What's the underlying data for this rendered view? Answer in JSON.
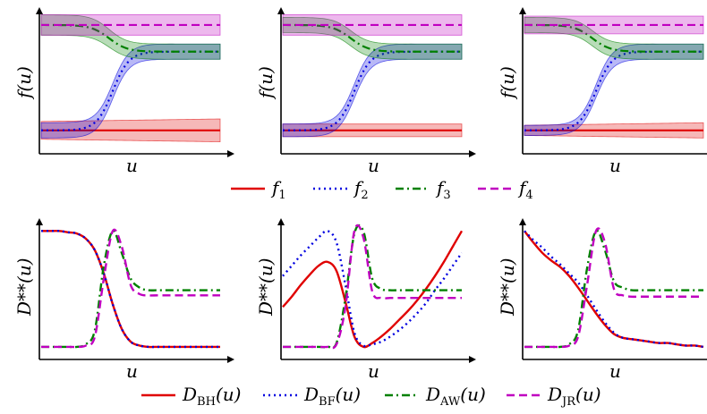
{
  "chart_data": {
    "type": "line",
    "description_rows": [
      "f(u) panels",
      "D(u) panels"
    ],
    "f_panels": [
      {
        "xlabel": "u",
        "ylabel": "f(u)",
        "xlim": [
          0,
          1
        ],
        "ylim": [
          0,
          1
        ],
        "series": [
          {
            "name": "f1",
            "color": "#e00000",
            "style": "solid",
            "center": [
              0.1,
              0.1
            ],
            "band": [
              0.07,
              0.09
            ]
          },
          {
            "name": "f2",
            "color": "#0000e0",
            "style": "dotted",
            "center": [
              0.1,
              0.72
            ],
            "band": [
              0.06,
              0.06
            ],
            "mid": 0.4,
            "steep": 22
          },
          {
            "name": "f3",
            "color": "#008000",
            "style": "dashdot",
            "center": [
              0.93,
              0.72
            ],
            "band": [
              0.08,
              0.06
            ],
            "mid": 0.38,
            "steep": 20
          },
          {
            "name": "f4",
            "color": "#c000c0",
            "style": "dashed",
            "center": [
              0.93,
              0.93
            ],
            "band": [
              0.08,
              0.08
            ]
          }
        ]
      },
      {
        "xlabel": "u",
        "ylabel": "f(u)",
        "xlim": [
          0,
          1
        ],
        "ylim": [
          0,
          1
        ],
        "series": [
          {
            "name": "f1",
            "color": "#e00000",
            "style": "solid",
            "center": [
              0.1,
              0.1
            ],
            "band": [
              0.05,
              0.05
            ]
          },
          {
            "name": "f2",
            "color": "#0000e0",
            "style": "dotted",
            "center": [
              0.1,
              0.72
            ],
            "band": [
              0.05,
              0.06
            ],
            "mid": 0.4,
            "steep": 22
          },
          {
            "name": "f3",
            "color": "#008000",
            "style": "dashdot",
            "center": [
              0.93,
              0.72
            ],
            "band": [
              0.06,
              0.06
            ],
            "mid": 0.38,
            "steep": 20
          },
          {
            "name": "f4",
            "color": "#c000c0",
            "style": "dashed",
            "center": [
              0.93,
              0.93
            ],
            "band": [
              0.08,
              0.08
            ]
          }
        ]
      },
      {
        "xlabel": "u",
        "ylabel": "f(u)",
        "xlim": [
          0,
          1
        ],
        "ylim": [
          0,
          1
        ],
        "series": [
          {
            "name": "f1",
            "color": "#e00000",
            "style": "solid",
            "center": [
              0.1,
              0.1
            ],
            "band": [
              0.04,
              0.06
            ]
          },
          {
            "name": "f2",
            "color": "#0000e0",
            "style": "dotted",
            "center": [
              0.1,
              0.72
            ],
            "band": [
              0.04,
              0.06
            ],
            "mid": 0.4,
            "steep": 22
          },
          {
            "name": "f3",
            "color": "#008000",
            "style": "dashdot",
            "center": [
              0.93,
              0.72
            ],
            "band": [
              0.06,
              0.06
            ],
            "mid": 0.38,
            "steep": 20
          },
          {
            "name": "f4",
            "color": "#c000c0",
            "style": "dashed",
            "center": [
              0.93,
              0.93
            ],
            "band": [
              0.07,
              0.07
            ]
          }
        ]
      }
    ],
    "d_panels": [
      {
        "xlabel": "u",
        "ylabel": "D**(u)",
        "xlim": [
          0,
          1
        ],
        "ylim": [
          0,
          1
        ],
        "x": [
          0.0,
          0.05,
          0.1,
          0.15,
          0.2,
          0.25,
          0.3,
          0.35,
          0.4,
          0.45,
          0.5,
          0.55,
          0.6,
          0.65,
          0.7,
          0.75,
          0.8,
          0.85,
          0.9,
          0.95,
          1.0
        ],
        "series": [
          {
            "name": "BH",
            "values": [
              0.97,
              0.97,
              0.97,
              0.96,
              0.95,
              0.91,
              0.82,
              0.64,
              0.4,
              0.21,
              0.11,
              0.08,
              0.07,
              0.07,
              0.07,
              0.07,
              0.07,
              0.07,
              0.07,
              0.07,
              0.07
            ]
          },
          {
            "name": "BF",
            "values": [
              0.97,
              0.97,
              0.97,
              0.96,
              0.95,
              0.91,
              0.82,
              0.64,
              0.4,
              0.21,
              0.11,
              0.08,
              0.07,
              0.07,
              0.07,
              0.07,
              0.07,
              0.07,
              0.07,
              0.07,
              0.07
            ]
          },
          {
            "name": "AW",
            "values": [
              0.07,
              0.07,
              0.07,
              0.07,
              0.07,
              0.09,
              0.2,
              0.7,
              0.97,
              0.8,
              0.6,
              0.53,
              0.51,
              0.51,
              0.51,
              0.51,
              0.51,
              0.51,
              0.51,
              0.51,
              0.51
            ]
          },
          {
            "name": "JR",
            "values": [
              0.07,
              0.07,
              0.07,
              0.07,
              0.07,
              0.08,
              0.15,
              0.6,
              0.97,
              0.85,
              0.55,
              0.48,
              0.47,
              0.47,
              0.47,
              0.47,
              0.47,
              0.47,
              0.47,
              0.47,
              0.47
            ]
          }
        ]
      },
      {
        "xlabel": "u",
        "ylabel": "D**(u)",
        "xlim": [
          0,
          1
        ],
        "ylim": [
          0,
          1
        ],
        "x": [
          0.0,
          0.05,
          0.1,
          0.15,
          0.2,
          0.25,
          0.3,
          0.35,
          0.4,
          0.45,
          0.5,
          0.55,
          0.6,
          0.65,
          0.7,
          0.75,
          0.8,
          0.85,
          0.9,
          0.95,
          1.0
        ],
        "series": [
          {
            "name": "BH",
            "values": [
              0.38,
              0.46,
              0.55,
              0.63,
              0.7,
              0.73,
              0.66,
              0.42,
              0.15,
              0.07,
              0.1,
              0.15,
              0.21,
              0.28,
              0.35,
              0.43,
              0.52,
              0.62,
              0.73,
              0.85,
              0.97
            ]
          },
          {
            "name": "BF",
            "values": [
              0.62,
              0.7,
              0.78,
              0.85,
              0.92,
              0.97,
              0.88,
              0.55,
              0.18,
              0.08,
              0.09,
              0.11,
              0.15,
              0.2,
              0.26,
              0.33,
              0.41,
              0.51,
              0.6,
              0.7,
              0.8
            ]
          },
          {
            "name": "AW",
            "values": [
              0.07,
              0.07,
              0.07,
              0.07,
              0.07,
              0.07,
              0.1,
              0.45,
              0.95,
              0.97,
              0.6,
              0.52,
              0.51,
              0.51,
              0.51,
              0.51,
              0.51,
              0.51,
              0.51,
              0.51,
              0.51
            ]
          },
          {
            "name": "JR",
            "values": [
              0.07,
              0.07,
              0.07,
              0.07,
              0.07,
              0.07,
              0.09,
              0.38,
              0.97,
              0.92,
              0.5,
              0.45,
              0.45,
              0.45,
              0.45,
              0.45,
              0.45,
              0.45,
              0.45,
              0.45,
              0.45
            ]
          }
        ]
      },
      {
        "xlabel": "u",
        "ylabel": "D**(u)",
        "xlim": [
          0,
          1
        ],
        "ylim": [
          0,
          1
        ],
        "x": [
          0.0,
          0.05,
          0.1,
          0.15,
          0.2,
          0.25,
          0.3,
          0.35,
          0.4,
          0.45,
          0.5,
          0.55,
          0.6,
          0.65,
          0.7,
          0.75,
          0.8,
          0.85,
          0.9,
          0.95,
          1.0
        ],
        "series": [
          {
            "name": "BH",
            "values": [
              0.97,
              0.88,
              0.8,
              0.74,
              0.69,
              0.62,
              0.53,
              0.43,
              0.33,
              0.24,
              0.17,
              0.14,
              0.13,
              0.12,
              0.11,
              0.1,
              0.1,
              0.09,
              0.08,
              0.08,
              0.07
            ]
          },
          {
            "name": "BF",
            "values": [
              0.97,
              0.9,
              0.84,
              0.77,
              0.71,
              0.64,
              0.57,
              0.47,
              0.36,
              0.26,
              0.18,
              0.14,
              0.13,
              0.12,
              0.11,
              0.1,
              0.1,
              0.09,
              0.08,
              0.08,
              0.07
            ]
          },
          {
            "name": "AW",
            "values": [
              0.07,
              0.07,
              0.07,
              0.07,
              0.07,
              0.09,
              0.2,
              0.68,
              0.97,
              0.82,
              0.58,
              0.53,
              0.51,
              0.51,
              0.51,
              0.51,
              0.51,
              0.51,
              0.51,
              0.51,
              0.51
            ]
          },
          {
            "name": "JR",
            "values": [
              0.07,
              0.07,
              0.07,
              0.07,
              0.07,
              0.08,
              0.15,
              0.55,
              0.97,
              0.88,
              0.52,
              0.47,
              0.46,
              0.46,
              0.46,
              0.46,
              0.46,
              0.46,
              0.46,
              0.46,
              0.46
            ]
          }
        ]
      }
    ],
    "legend_top": [
      {
        "base": "f",
        "sub": "1",
        "color": "#e00000",
        "style": "solid"
      },
      {
        "base": "f",
        "sub": "2",
        "color": "#0000e0",
        "style": "dotted"
      },
      {
        "base": "f",
        "sub": "3",
        "color": "#008000",
        "style": "dashdot"
      },
      {
        "base": "f",
        "sub": "4",
        "color": "#c000c0",
        "style": "dashed"
      }
    ],
    "legend_bottom": [
      {
        "base": "D",
        "sub": "BH",
        "tail": "(u)",
        "color": "#e00000",
        "style": "solid"
      },
      {
        "base": "D",
        "sub": "BF",
        "tail": "(u)",
        "color": "#0000e0",
        "style": "dotted"
      },
      {
        "base": "D",
        "sub": "AW",
        "tail": "(u)",
        "color": "#008000",
        "style": "dashdot"
      },
      {
        "base": "D",
        "sub": "JR",
        "tail": "(u)",
        "color": "#c000c0",
        "style": "dashed"
      }
    ],
    "colors": {
      "BH": "#e00000",
      "BF": "#0000e0",
      "AW": "#008000",
      "JR": "#c000c0"
    }
  }
}
